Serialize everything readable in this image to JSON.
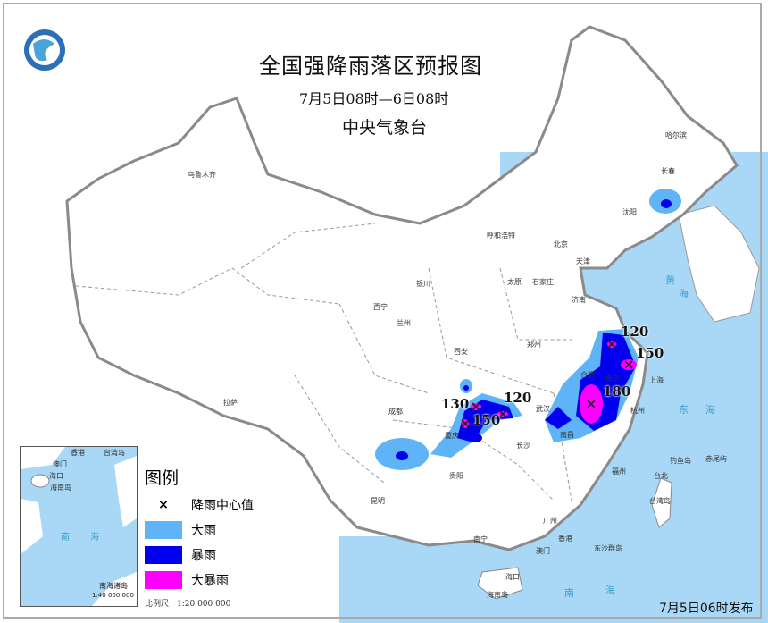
{
  "header": {
    "title": "全国强降雨落区预报图",
    "period": "7月5日08时—6日08时",
    "organization": "中央气象台",
    "logo_icon": "cma-logo-icon"
  },
  "legend": {
    "title": "图例",
    "items": [
      {
        "symbol": "×",
        "label": "降雨中心值"
      },
      {
        "label": "大雨",
        "color": "#5fb4f7"
      },
      {
        "label": "暴雨",
        "color": "#0000ee"
      },
      {
        "label": "大暴雨",
        "color": "#ff00ff"
      }
    ],
    "scale": "比例尺　1:20 000 000"
  },
  "inset": {
    "title": "南海诸岛",
    "scale": "1:40 000 000",
    "labels": [
      "香港",
      "台湾岛",
      "澳门",
      "海口",
      "海南岛",
      "南",
      "海"
    ]
  },
  "rain_centers": [
    {
      "value": "120"
    },
    {
      "value": "150"
    },
    {
      "value": "180"
    },
    {
      "value": "130"
    },
    {
      "value": "150"
    },
    {
      "value": "120"
    }
  ],
  "cities": [
    "乌鲁木齐",
    "哈尔滨",
    "长春",
    "沈阳",
    "呼和浩特",
    "北京",
    "天津",
    "银川",
    "太原",
    "石家庄",
    "济南",
    "西宁",
    "兰州",
    "西安",
    "郑州",
    "合肥",
    "南京",
    "上海",
    "武汉",
    "杭州",
    "成都",
    "重庆",
    "贵阳",
    "长沙",
    "南昌",
    "福州",
    "台北",
    "昆明",
    "南宁",
    "广州",
    "香港",
    "澳门",
    "海口",
    "拉萨"
  ],
  "sea_labels": [
    "东",
    "海",
    "黄",
    "海",
    "南",
    "海",
    "台湾岛",
    "钓鱼岛",
    "赤尾屿",
    "东沙群岛",
    "海南岛"
  ],
  "footer": {
    "issued": "7月5日06时发布"
  },
  "colors": {
    "sea": "#a9d8f6",
    "heavy_rain": "#5fb4f7",
    "rainstorm": "#0000ee",
    "heavy_rainstorm": "#ff00ff"
  }
}
